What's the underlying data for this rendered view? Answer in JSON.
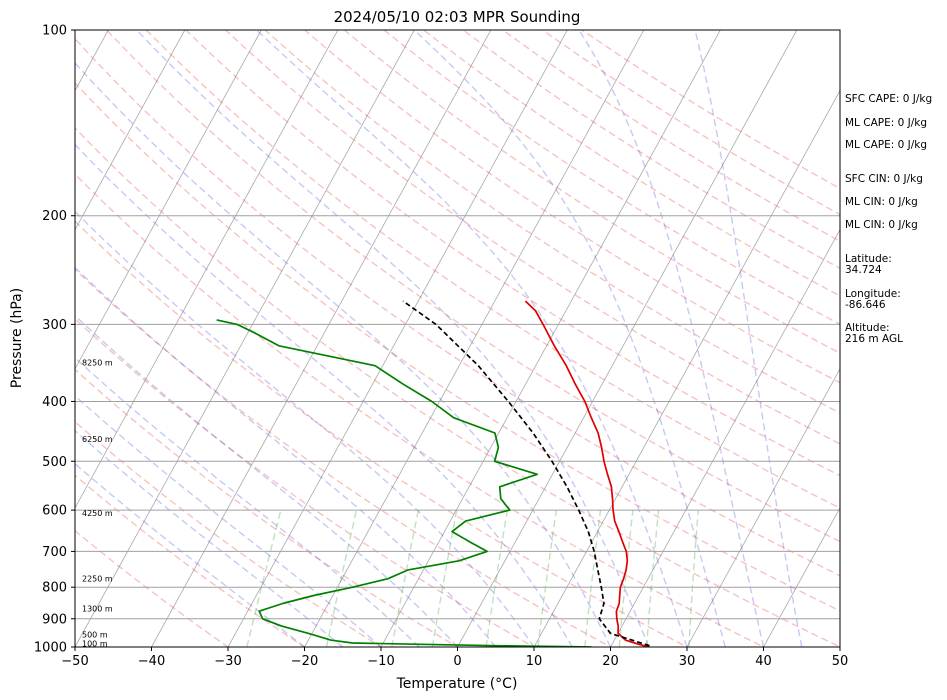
{
  "chart_data": {
    "type": "line",
    "title": "2024/05/10 02:03 MPR Sounding",
    "xlabel": "Temperature (°C)",
    "ylabel": "Pressure (hPa)",
    "xlim": [
      -50,
      50
    ],
    "ylim": [
      1000,
      100
    ],
    "y_scale": "log",
    "grid": true,
    "x_ticks": [
      -50,
      -40,
      -30,
      -20,
      -10,
      0,
      10,
      20,
      30,
      40,
      50
    ],
    "y_ticks": [
      100,
      200,
      300,
      400,
      500,
      600,
      700,
      800,
      900,
      1000
    ],
    "series": [
      {
        "name": "",
        "role": "temperature",
        "color": "#e00000",
        "points": [
          [
            1000,
            25
          ],
          [
            990,
            23.5
          ],
          [
            975,
            21.5
          ],
          [
            950,
            20
          ],
          [
            925,
            19.5
          ],
          [
            900,
            18.8
          ],
          [
            875,
            18.2
          ],
          [
            850,
            18
          ],
          [
            825,
            17.5
          ],
          [
            800,
            17
          ],
          [
            775,
            16.8
          ],
          [
            750,
            16.5
          ],
          [
            725,
            16
          ],
          [
            700,
            15.2
          ],
          [
            675,
            14
          ],
          [
            650,
            12.8
          ],
          [
            625,
            11.5
          ],
          [
            600,
            10.5
          ],
          [
            575,
            9.6
          ],
          [
            550,
            8.6
          ],
          [
            525,
            7.2
          ],
          [
            500,
            5.8
          ],
          [
            475,
            4.5
          ],
          [
            450,
            3
          ],
          [
            425,
            1
          ],
          [
            400,
            -1
          ],
          [
            375,
            -3.5
          ],
          [
            350,
            -6
          ],
          [
            325,
            -9
          ],
          [
            300,
            -12
          ],
          [
            285,
            -14
          ],
          [
            275,
            -16
          ]
        ]
      },
      {
        "name": "",
        "role": "dewpoint",
        "color": "#008000",
        "points": [
          [
            1000,
            17.5
          ],
          [
            995,
            5
          ],
          [
            990,
            -5
          ],
          [
            985,
            -14
          ],
          [
            975,
            -17
          ],
          [
            950,
            -20.5
          ],
          [
            925,
            -24.5
          ],
          [
            900,
            -27.5
          ],
          [
            875,
            -28.5
          ],
          [
            850,
            -26
          ],
          [
            825,
            -22.5
          ],
          [
            800,
            -18
          ],
          [
            775,
            -14
          ],
          [
            750,
            -12
          ],
          [
            725,
            -6
          ],
          [
            700,
            -3
          ],
          [
            675,
            -6
          ],
          [
            650,
            -9
          ],
          [
            625,
            -8
          ],
          [
            600,
            -3
          ],
          [
            575,
            -5
          ],
          [
            550,
            -6
          ],
          [
            525,
            -2
          ],
          [
            500,
            -8.5
          ],
          [
            475,
            -9
          ],
          [
            450,
            -10.5
          ],
          [
            425,
            -17
          ],
          [
            400,
            -21
          ],
          [
            375,
            -26
          ],
          [
            350,
            -31
          ],
          [
            325,
            -45
          ],
          [
            310,
            -49
          ],
          [
            300,
            -52
          ],
          [
            295,
            -55
          ]
        ]
      },
      {
        "name": "",
        "role": "parcel",
        "color": "#000000",
        "dashed": true,
        "points": [
          [
            995,
            25
          ],
          [
            950,
            19
          ],
          [
            900,
            16.5
          ],
          [
            850,
            16
          ],
          [
            800,
            14.5
          ],
          [
            750,
            12.8
          ],
          [
            700,
            11
          ],
          [
            650,
            8.8
          ],
          [
            600,
            6
          ],
          [
            550,
            2.8
          ],
          [
            500,
            -1
          ],
          [
            450,
            -5.5
          ],
          [
            400,
            -11
          ],
          [
            350,
            -17.5
          ],
          [
            300,
            -26
          ],
          [
            275,
            -32
          ]
        ]
      }
    ],
    "height_labels": [
      {
        "p": 987,
        "text": "100 m"
      },
      {
        "p": 955,
        "text": "500 m"
      },
      {
        "p": 866,
        "text": "1300 m"
      },
      {
        "p": 775,
        "text": "2250 m"
      },
      {
        "p": 607,
        "text": "4250 m"
      },
      {
        "p": 460,
        "text": "6250 m"
      },
      {
        "p": 346,
        "text": "8250 m"
      }
    ]
  },
  "indices": [
    "SFC CAPE: 0 J/kg",
    "ML CAPE: 0 J/kg",
    "ML CAPE: 0 J/kg",
    "SFC CIN: 0 J/kg",
    "ML CIN: 0 J/kg",
    "ML CIN: 0 J/kg"
  ],
  "location": {
    "latitude_label": "Latitude:",
    "latitude": "34.724",
    "longitude_label": "Longitude:",
    "longitude": "-86.646",
    "altitude_label": "Altitude:",
    "altitude": "216 m AGL"
  }
}
